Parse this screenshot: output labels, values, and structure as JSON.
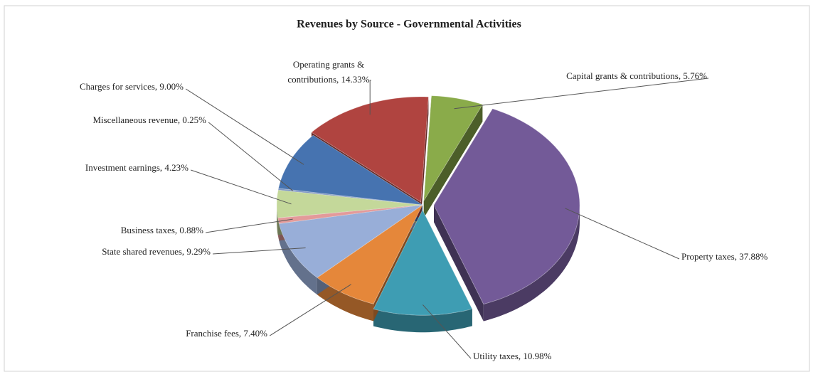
{
  "chart_data": {
    "type": "pie",
    "title": "Revenues by Source - Governmental Activities",
    "values": [
      5.76,
      37.88,
      10.98,
      7.4,
      9.29,
      0.88,
      4.23,
      0.25,
      9.0,
      14.33
    ],
    "value_labels": [
      "Capital grants & contributions, 5.76%",
      "Property taxes, 37.88%",
      "Utility taxes, 10.98%",
      "Franchise fees, 7.40%",
      "State shared revenues, 9.29%",
      "Business taxes, 0.88%",
      "Investment earnings, 4.23%",
      "Miscellaneous revenue, 0.25%",
      "Charges for services, 9.00%",
      "Operating grants & contributions, 14.33%"
    ],
    "colors": [
      "#8aab4a",
      "#735a98",
      "#3e9db3",
      "#e5873a",
      "#98aed8",
      "#e39a9a",
      "#c4d89a",
      "#7e96c4",
      "#4673b0",
      "#b04440"
    ]
  }
}
